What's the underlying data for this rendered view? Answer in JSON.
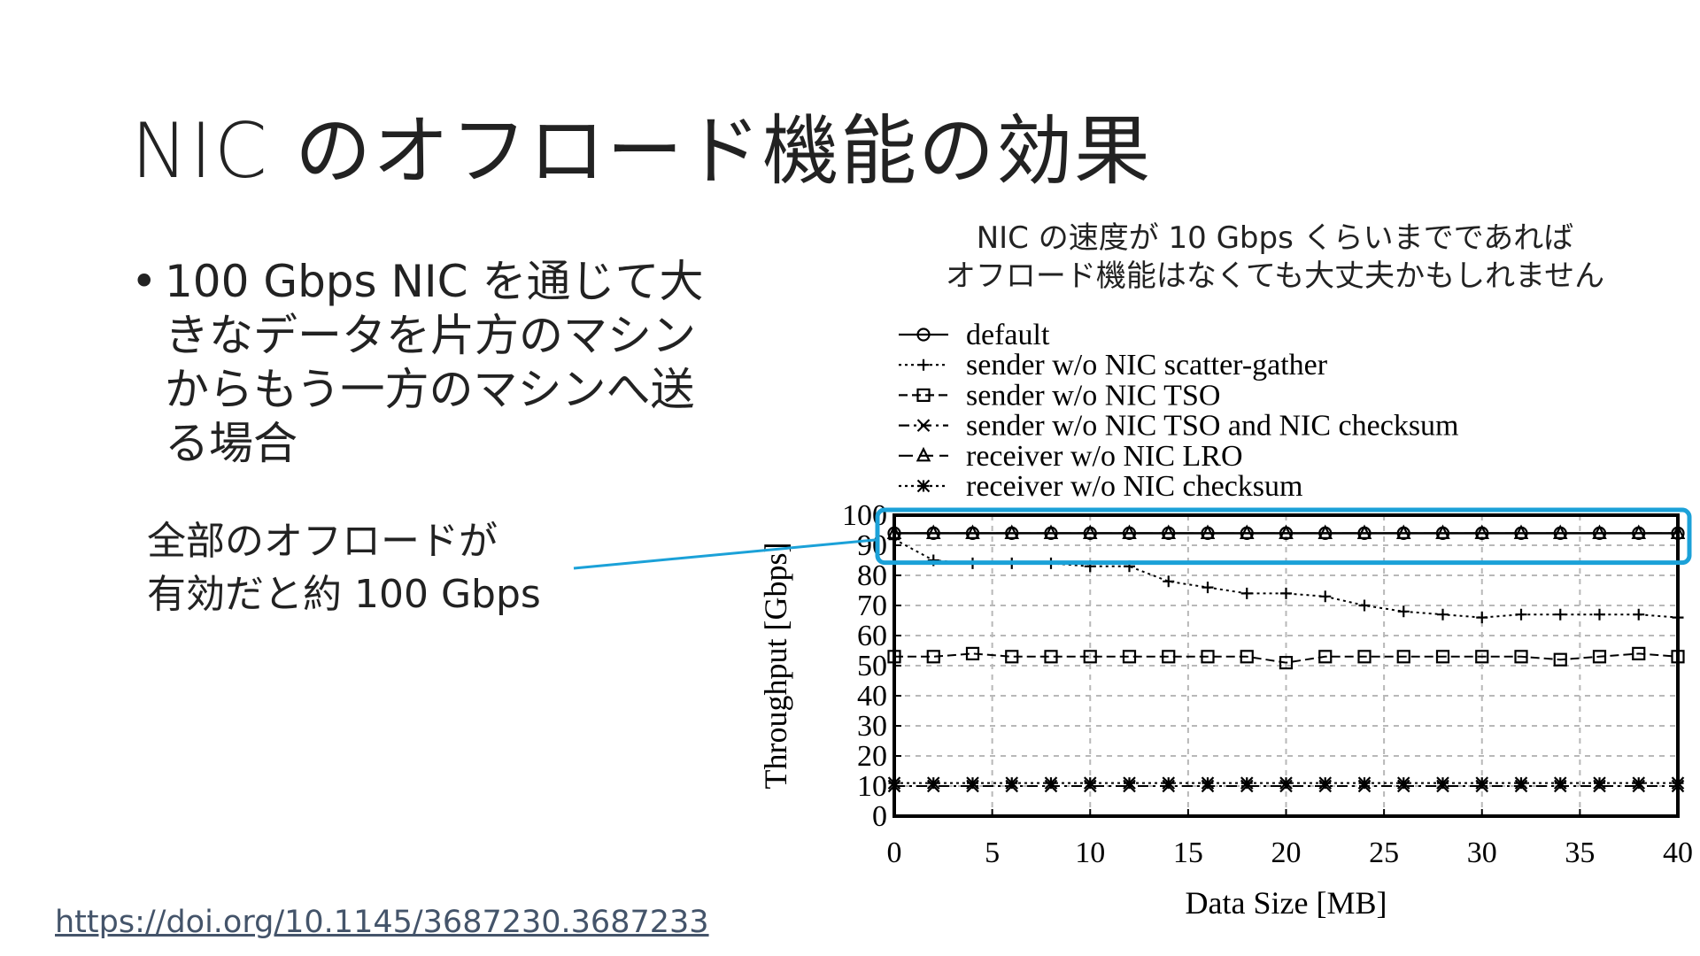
{
  "slide": {
    "title": "NIC のオフロード機能の効果",
    "bullets": [
      "100 Gbps NIC を通じて大きなデータを片方のマシンからもう一方のマシンへ送る場合"
    ],
    "callout": {
      "line1": "全部のオフロードが",
      "line2": "有効だと約 100 Gbps"
    },
    "note": {
      "line1": "NIC の速度が 10 Gbps くらいまでであれば",
      "line2": "オフロード機能はなくても大丈夫かもしれません"
    },
    "link": "https://doi.org/10.1145/3687230.3687233",
    "highlight_color": "#1ba1d8"
  },
  "chart_data": {
    "type": "line",
    "xlabel": "Data Size [MB]",
    "ylabel": "Throughput [Gbps]",
    "xlim": [
      0,
      40
    ],
    "ylim": [
      0,
      100
    ],
    "xticks": [
      0,
      5,
      10,
      15,
      20,
      25,
      30,
      35,
      40
    ],
    "yticks": [
      0,
      10,
      20,
      30,
      40,
      50,
      60,
      70,
      80,
      90,
      100
    ],
    "grid": true,
    "legend_position": "top",
    "x": [
      0,
      2,
      4,
      6,
      8,
      10,
      12,
      14,
      16,
      18,
      20,
      22,
      24,
      26,
      28,
      30,
      32,
      34,
      36,
      38,
      40
    ],
    "series": [
      {
        "name": "default",
        "marker": "circle",
        "dash": "solid",
        "values": [
          94,
          94,
          94,
          94,
          94,
          94,
          94,
          94,
          94,
          94,
          94,
          94,
          94,
          94,
          94,
          94,
          94,
          94,
          94,
          94,
          94
        ]
      },
      {
        "name": "sender w/o NIC scatter-gather",
        "marker": "plus",
        "dash": "dotted",
        "values": [
          92,
          85,
          84,
          84,
          84,
          83,
          83,
          78,
          76,
          74,
          74,
          73,
          70,
          68,
          67,
          66,
          67,
          67,
          67,
          67,
          66
        ]
      },
      {
        "name": "sender w/o NIC TSO",
        "marker": "square",
        "dash": "dashed",
        "values": [
          53,
          53,
          54,
          53,
          53,
          53,
          53,
          53,
          53,
          53,
          51,
          53,
          53,
          53,
          53,
          53,
          53,
          52,
          53,
          54,
          53
        ]
      },
      {
        "name": "sender w/o NIC TSO and NIC checksum",
        "marker": "x",
        "dash": "dashdot",
        "values": [
          10,
          10,
          10,
          10,
          10,
          10,
          10,
          10,
          10,
          10,
          10,
          10,
          10,
          10,
          10,
          10,
          10,
          10,
          10,
          10,
          10
        ]
      },
      {
        "name": "receiver w/o NIC LRO",
        "marker": "triangle",
        "dash": "longdash",
        "values": [
          94,
          94,
          94,
          94,
          94,
          94,
          94,
          94,
          94,
          94,
          94,
          94,
          94,
          94,
          94,
          94,
          94,
          94,
          94,
          94,
          94
        ]
      },
      {
        "name": "receiver w/o NIC checksum",
        "marker": "star",
        "dash": "dotted",
        "values": [
          11,
          11,
          11,
          11,
          11,
          11,
          11,
          11,
          11,
          11,
          11,
          11,
          11,
          11,
          11,
          11,
          11,
          11,
          11,
          11,
          11
        ]
      }
    ],
    "highlight": {
      "series": [
        "default",
        "receiver w/o NIC LRO"
      ],
      "y_range": [
        86,
        100
      ]
    }
  }
}
